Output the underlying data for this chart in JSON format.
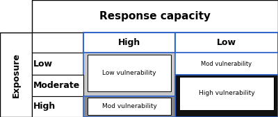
{
  "title": "Response capacity",
  "col_headers": [
    "High",
    "Low"
  ],
  "row_headers": [
    "Low",
    "Moderate",
    "High"
  ],
  "y_label": "Exposure",
  "cells": {
    "Low_High": {
      "text": "Low vulnerability",
      "bg": "#cccccc",
      "text_bg": "#ffffff"
    },
    "Low_Low": {
      "text": "Mod vulnerability",
      "bg": "#ffffff",
      "text_bg": "#ffffff"
    },
    "Moderate_High": {
      "text": "",
      "bg": "#cccccc",
      "text_bg": null
    },
    "Moderate_Low": {
      "text": "High vulnerability",
      "bg": "#111111",
      "text_bg": "#ffffff"
    },
    "High_High": {
      "text": "Mod vulnerability",
      "bg": "#999999",
      "text_bg": "#ffffff"
    },
    "High_Low": {
      "text": "",
      "bg": "#111111",
      "text_bg": null
    }
  },
  "outer_border": "#3366cc",
  "title_border": "#000000",
  "background": "#ffffff"
}
